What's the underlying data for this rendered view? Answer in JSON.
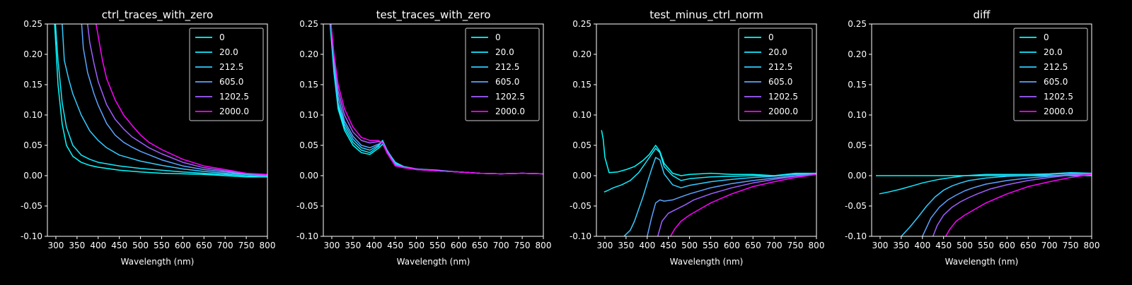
{
  "figure": {
    "background": "#000000",
    "foreground": "#ffffff"
  },
  "legend_colors": [
    "#00ffff",
    "#14ebff",
    "#33ccff",
    "#5ca3ff",
    "#a05fff",
    "#ff00ff"
  ],
  "chart_data": [
    {
      "type": "line",
      "title": "ctrl_traces_with_zero",
      "xlabel": "Wavelength (nm)",
      "ylabel": "",
      "xlim": [
        280,
        800
      ],
      "ylim": [
        -0.1,
        0.25
      ],
      "xticks": [
        300,
        350,
        400,
        450,
        500,
        550,
        600,
        650,
        700,
        750,
        800
      ],
      "yticks": [
        -0.1,
        -0.05,
        0.0,
        0.05,
        0.1,
        0.15,
        0.2,
        0.25
      ],
      "legend_position": "upper right",
      "grid": false,
      "series": [
        {
          "name": "0",
          "color": "#00ffff",
          "x": [
            297,
            305,
            315,
            325,
            340,
            360,
            380,
            400,
            450,
            500,
            550,
            600,
            650,
            700,
            750,
            800
          ],
          "y": [
            0.25,
            0.15,
            0.085,
            0.05,
            0.032,
            0.022,
            0.017,
            0.014,
            0.009,
            0.006,
            0.004,
            0.003,
            0.002,
            0.0,
            -0.002,
            -0.002
          ]
        },
        {
          "name": "20.0",
          "color": "#14ebff",
          "x": [
            299,
            305,
            315,
            325,
            340,
            360,
            380,
            400,
            450,
            500,
            550,
            600,
            650,
            700,
            750,
            800
          ],
          "y": [
            0.25,
            0.19,
            0.12,
            0.08,
            0.05,
            0.034,
            0.027,
            0.022,
            0.016,
            0.012,
            0.009,
            0.006,
            0.004,
            0.002,
            0.0,
            -0.002
          ]
        },
        {
          "name": "212.5",
          "color": "#33ccff",
          "x": [
            315,
            320,
            330,
            340,
            360,
            380,
            400,
            420,
            450,
            500,
            550,
            600,
            650,
            700,
            750,
            800
          ],
          "y": [
            0.25,
            0.19,
            0.16,
            0.135,
            0.1,
            0.074,
            0.058,
            0.046,
            0.034,
            0.024,
            0.017,
            0.011,
            0.007,
            0.004,
            0.002,
            0.0
          ]
        },
        {
          "name": "605.0",
          "color": "#5ca3ff",
          "x": [
            361,
            365,
            375,
            390,
            400,
            420,
            440,
            460,
            480,
            500,
            550,
            600,
            650,
            700,
            750,
            800
          ],
          "y": [
            0.25,
            0.21,
            0.17,
            0.135,
            0.116,
            0.086,
            0.067,
            0.055,
            0.047,
            0.04,
            0.026,
            0.016,
            0.01,
            0.006,
            0.003,
            0.001
          ]
        },
        {
          "name": "1202.5",
          "color": "#a05fff",
          "x": [
            375,
            380,
            390,
            400,
            420,
            440,
            460,
            480,
            500,
            520,
            550,
            600,
            650,
            700,
            750,
            800
          ],
          "y": [
            0.25,
            0.22,
            0.185,
            0.155,
            0.117,
            0.093,
            0.077,
            0.064,
            0.055,
            0.046,
            0.036,
            0.022,
            0.013,
            0.008,
            0.004,
            0.001
          ]
        },
        {
          "name": "2000.0",
          "color": "#ff00ff",
          "x": [
            395,
            400,
            410,
            420,
            440,
            460,
            480,
            500,
            520,
            550,
            600,
            650,
            700,
            750,
            800
          ],
          "y": [
            0.25,
            0.23,
            0.19,
            0.16,
            0.125,
            0.1,
            0.083,
            0.067,
            0.055,
            0.043,
            0.027,
            0.016,
            0.01,
            0.004,
            0.002
          ]
        }
      ]
    },
    {
      "type": "line",
      "title": "test_traces_with_zero",
      "xlabel": "Wavelength (nm)",
      "ylabel": "",
      "xlim": [
        280,
        800
      ],
      "ylim": [
        -0.1,
        0.25
      ],
      "xticks": [
        300,
        350,
        400,
        450,
        500,
        550,
        600,
        650,
        700,
        750,
        800
      ],
      "yticks": [
        -0.1,
        -0.05,
        0.0,
        0.05,
        0.1,
        0.15,
        0.2,
        0.25
      ],
      "legend_position": "upper right",
      "grid": false,
      "series": [
        {
          "name": "0",
          "color": "#00ffff",
          "x": [
            296,
            305,
            315,
            330,
            350,
            370,
            390,
            410,
            420,
            430,
            450,
            470,
            500,
            550,
            600,
            650,
            700,
            750,
            800
          ],
          "y": [
            0.25,
            0.17,
            0.11,
            0.075,
            0.05,
            0.038,
            0.035,
            0.045,
            0.052,
            0.04,
            0.02,
            0.014,
            0.01,
            0.008,
            0.006,
            0.004,
            0.003,
            0.004,
            0.003
          ]
        },
        {
          "name": "20.0",
          "color": "#14ebff",
          "x": [
            297,
            305,
            315,
            330,
            350,
            370,
            390,
            410,
            420,
            430,
            450,
            470,
            500,
            550,
            600,
            650,
            700,
            750,
            800
          ],
          "y": [
            0.25,
            0.175,
            0.115,
            0.08,
            0.055,
            0.042,
            0.038,
            0.048,
            0.058,
            0.042,
            0.022,
            0.015,
            0.011,
            0.009,
            0.006,
            0.004,
            0.003,
            0.004,
            0.003
          ]
        },
        {
          "name": "212.5",
          "color": "#33ccff",
          "x": [
            297,
            305,
            315,
            330,
            350,
            370,
            390,
            410,
            420,
            430,
            450,
            470,
            500,
            550,
            600,
            650,
            700,
            750,
            800
          ],
          "y": [
            0.25,
            0.18,
            0.12,
            0.085,
            0.06,
            0.046,
            0.042,
            0.05,
            0.058,
            0.043,
            0.02,
            0.015,
            0.011,
            0.008,
            0.006,
            0.004,
            0.003,
            0.004,
            0.003
          ]
        },
        {
          "name": "605.0",
          "color": "#5ca3ff",
          "x": [
            298,
            305,
            315,
            330,
            350,
            370,
            390,
            410,
            420,
            430,
            450,
            470,
            500,
            550,
            600,
            650,
            700,
            750,
            800
          ],
          "y": [
            0.25,
            0.19,
            0.13,
            0.09,
            0.065,
            0.05,
            0.046,
            0.052,
            0.055,
            0.042,
            0.018,
            0.014,
            0.011,
            0.008,
            0.006,
            0.004,
            0.003,
            0.004,
            0.003
          ]
        },
        {
          "name": "1202.5",
          "color": "#a05fff",
          "x": [
            298,
            305,
            315,
            330,
            350,
            370,
            390,
            410,
            420,
            430,
            450,
            470,
            500,
            550,
            600,
            650,
            700,
            750,
            800
          ],
          "y": [
            0.25,
            0.2,
            0.14,
            0.1,
            0.072,
            0.058,
            0.054,
            0.056,
            0.055,
            0.04,
            0.017,
            0.014,
            0.011,
            0.008,
            0.006,
            0.004,
            0.003,
            0.004,
            0.003
          ]
        },
        {
          "name": "2000.0",
          "color": "#ff00ff",
          "x": [
            298,
            305,
            315,
            330,
            350,
            370,
            390,
            410,
            420,
            430,
            450,
            470,
            500,
            550,
            600,
            650,
            700,
            750,
            800
          ],
          "y": [
            0.25,
            0.2,
            0.15,
            0.11,
            0.08,
            0.063,
            0.058,
            0.058,
            0.054,
            0.038,
            0.016,
            0.013,
            0.01,
            0.008,
            0.006,
            0.004,
            0.003,
            0.004,
            0.003
          ]
        }
      ]
    },
    {
      "type": "line",
      "title": "test_minus_ctrl_norm",
      "xlabel": "Wavelength (nm)",
      "ylabel": "",
      "xlim": [
        280,
        800
      ],
      "ylim": [
        -0.1,
        0.25
      ],
      "xticks": [
        300,
        350,
        400,
        450,
        500,
        550,
        600,
        650,
        700,
        750,
        800
      ],
      "yticks": [
        -0.1,
        -0.05,
        0.0,
        0.05,
        0.1,
        0.15,
        0.2,
        0.25
      ],
      "legend_position": "upper right",
      "grid": false,
      "series": [
        {
          "name": "0",
          "color": "#00ffff",
          "x": [
            292,
            296,
            300,
            310,
            330,
            350,
            370,
            390,
            405,
            420,
            430,
            440,
            460,
            480,
            500,
            550,
            600,
            650,
            700,
            750,
            800
          ],
          "y": [
            0.075,
            0.06,
            0.03,
            0.005,
            0.006,
            0.01,
            0.015,
            0.025,
            0.035,
            0.05,
            0.04,
            0.02,
            0.004,
            0.0,
            0.002,
            0.004,
            0.002,
            0.002,
            0.0,
            0.004,
            0.004
          ]
        },
        {
          "name": "20.0",
          "color": "#14ebff",
          "x": [
            298,
            305,
            320,
            340,
            360,
            380,
            400,
            420,
            430,
            440,
            460,
            480,
            500,
            550,
            600,
            650,
            700,
            750,
            800
          ],
          "y": [
            -0.027,
            -0.025,
            -0.02,
            -0.015,
            -0.008,
            0.005,
            0.025,
            0.045,
            0.038,
            0.015,
            0.0,
            -0.008,
            -0.005,
            -0.002,
            -0.001,
            0.0,
            0.0,
            0.003,
            0.004
          ]
        },
        {
          "name": "212.5",
          "color": "#33ccff",
          "x": [
            345,
            360,
            370,
            380,
            390,
            400,
            410,
            420,
            430,
            440,
            460,
            480,
            500,
            550,
            600,
            650,
            700,
            750,
            800
          ],
          "y": [
            -0.1,
            -0.09,
            -0.075,
            -0.055,
            -0.035,
            -0.012,
            0.01,
            0.03,
            0.026,
            0.003,
            -0.015,
            -0.02,
            -0.016,
            -0.01,
            -0.006,
            -0.003,
            -0.001,
            0.002,
            0.003
          ]
        },
        {
          "name": "605.0",
          "color": "#5ca3ff",
          "x": [
            400,
            410,
            420,
            430,
            440,
            460,
            480,
            500,
            550,
            600,
            650,
            700,
            750,
            800
          ],
          "y": [
            -0.1,
            -0.07,
            -0.045,
            -0.04,
            -0.042,
            -0.04,
            -0.035,
            -0.03,
            -0.02,
            -0.013,
            -0.008,
            -0.004,
            0.0,
            0.003
          ]
        },
        {
          "name": "1202.5",
          "color": "#a05fff",
          "x": [
            425,
            435,
            450,
            470,
            490,
            510,
            550,
            600,
            650,
            700,
            750,
            800
          ],
          "y": [
            -0.1,
            -0.075,
            -0.062,
            -0.055,
            -0.048,
            -0.04,
            -0.03,
            -0.02,
            -0.012,
            -0.006,
            -0.001,
            0.002
          ]
        },
        {
          "name": "2000.0",
          "color": "#ff00ff",
          "x": [
            455,
            465,
            480,
            500,
            520,
            550,
            600,
            650,
            700,
            750,
            800
          ],
          "y": [
            -0.1,
            -0.088,
            -0.075,
            -0.065,
            -0.057,
            -0.045,
            -0.03,
            -0.018,
            -0.01,
            -0.003,
            0.002
          ]
        }
      ]
    },
    {
      "type": "line",
      "title": "diff",
      "xlabel": "Wavelength (nm)",
      "ylabel": "",
      "xlim": [
        280,
        800
      ],
      "ylim": [
        -0.1,
        0.25
      ],
      "xticks": [
        300,
        350,
        400,
        450,
        500,
        550,
        600,
        650,
        700,
        750,
        800
      ],
      "yticks": [
        -0.1,
        -0.05,
        0.0,
        0.05,
        0.1,
        0.15,
        0.2,
        0.25
      ],
      "legend_position": "upper right",
      "grid": false,
      "series": [
        {
          "name": "0",
          "color": "#00ffff",
          "x": [
            290,
            400,
            500,
            600,
            700,
            800
          ],
          "y": [
            0.0,
            0.0,
            0.0,
            0.0,
            0.0,
            0.0
          ]
        },
        {
          "name": "20.0",
          "color": "#14ebff",
          "x": [
            298,
            320,
            350,
            380,
            400,
            420,
            440,
            460,
            480,
            500,
            550,
            600,
            650,
            700,
            750,
            800
          ],
          "y": [
            -0.03,
            -0.027,
            -0.022,
            -0.016,
            -0.012,
            -0.009,
            -0.006,
            -0.004,
            -0.002,
            0.0,
            0.002,
            0.002,
            0.002,
            0.003,
            0.005,
            0.004
          ]
        },
        {
          "name": "212.5",
          "color": "#33ccff",
          "x": [
            350,
            370,
            390,
            410,
            430,
            450,
            470,
            490,
            510,
            550,
            600,
            650,
            700,
            750,
            800
          ],
          "y": [
            -0.1,
            -0.085,
            -0.068,
            -0.05,
            -0.035,
            -0.024,
            -0.017,
            -0.012,
            -0.008,
            -0.004,
            -0.001,
            0.0,
            0.002,
            0.004,
            0.004
          ]
        },
        {
          "name": "605.0",
          "color": "#5ca3ff",
          "x": [
            400,
            410,
            420,
            440,
            460,
            480,
            500,
            520,
            550,
            600,
            650,
            700,
            750,
            800
          ],
          "y": [
            -0.1,
            -0.085,
            -0.07,
            -0.052,
            -0.04,
            -0.032,
            -0.025,
            -0.02,
            -0.014,
            -0.008,
            -0.004,
            -0.001,
            0.002,
            0.003
          ]
        },
        {
          "name": "1202.5",
          "color": "#a05fff",
          "x": [
            425,
            435,
            450,
            470,
            490,
            510,
            530,
            560,
            600,
            650,
            700,
            750,
            800
          ],
          "y": [
            -0.1,
            -0.082,
            -0.065,
            -0.052,
            -0.043,
            -0.036,
            -0.03,
            -0.022,
            -0.015,
            -0.008,
            -0.003,
            0.001,
            0.003
          ]
        },
        {
          "name": "2000.0",
          "color": "#ff00ff",
          "x": [
            455,
            465,
            480,
            500,
            520,
            550,
            580,
            600,
            650,
            700,
            750,
            800
          ],
          "y": [
            -0.1,
            -0.088,
            -0.075,
            -0.065,
            -0.057,
            -0.045,
            -0.036,
            -0.03,
            -0.018,
            -0.01,
            -0.003,
            0.002
          ]
        }
      ]
    }
  ]
}
